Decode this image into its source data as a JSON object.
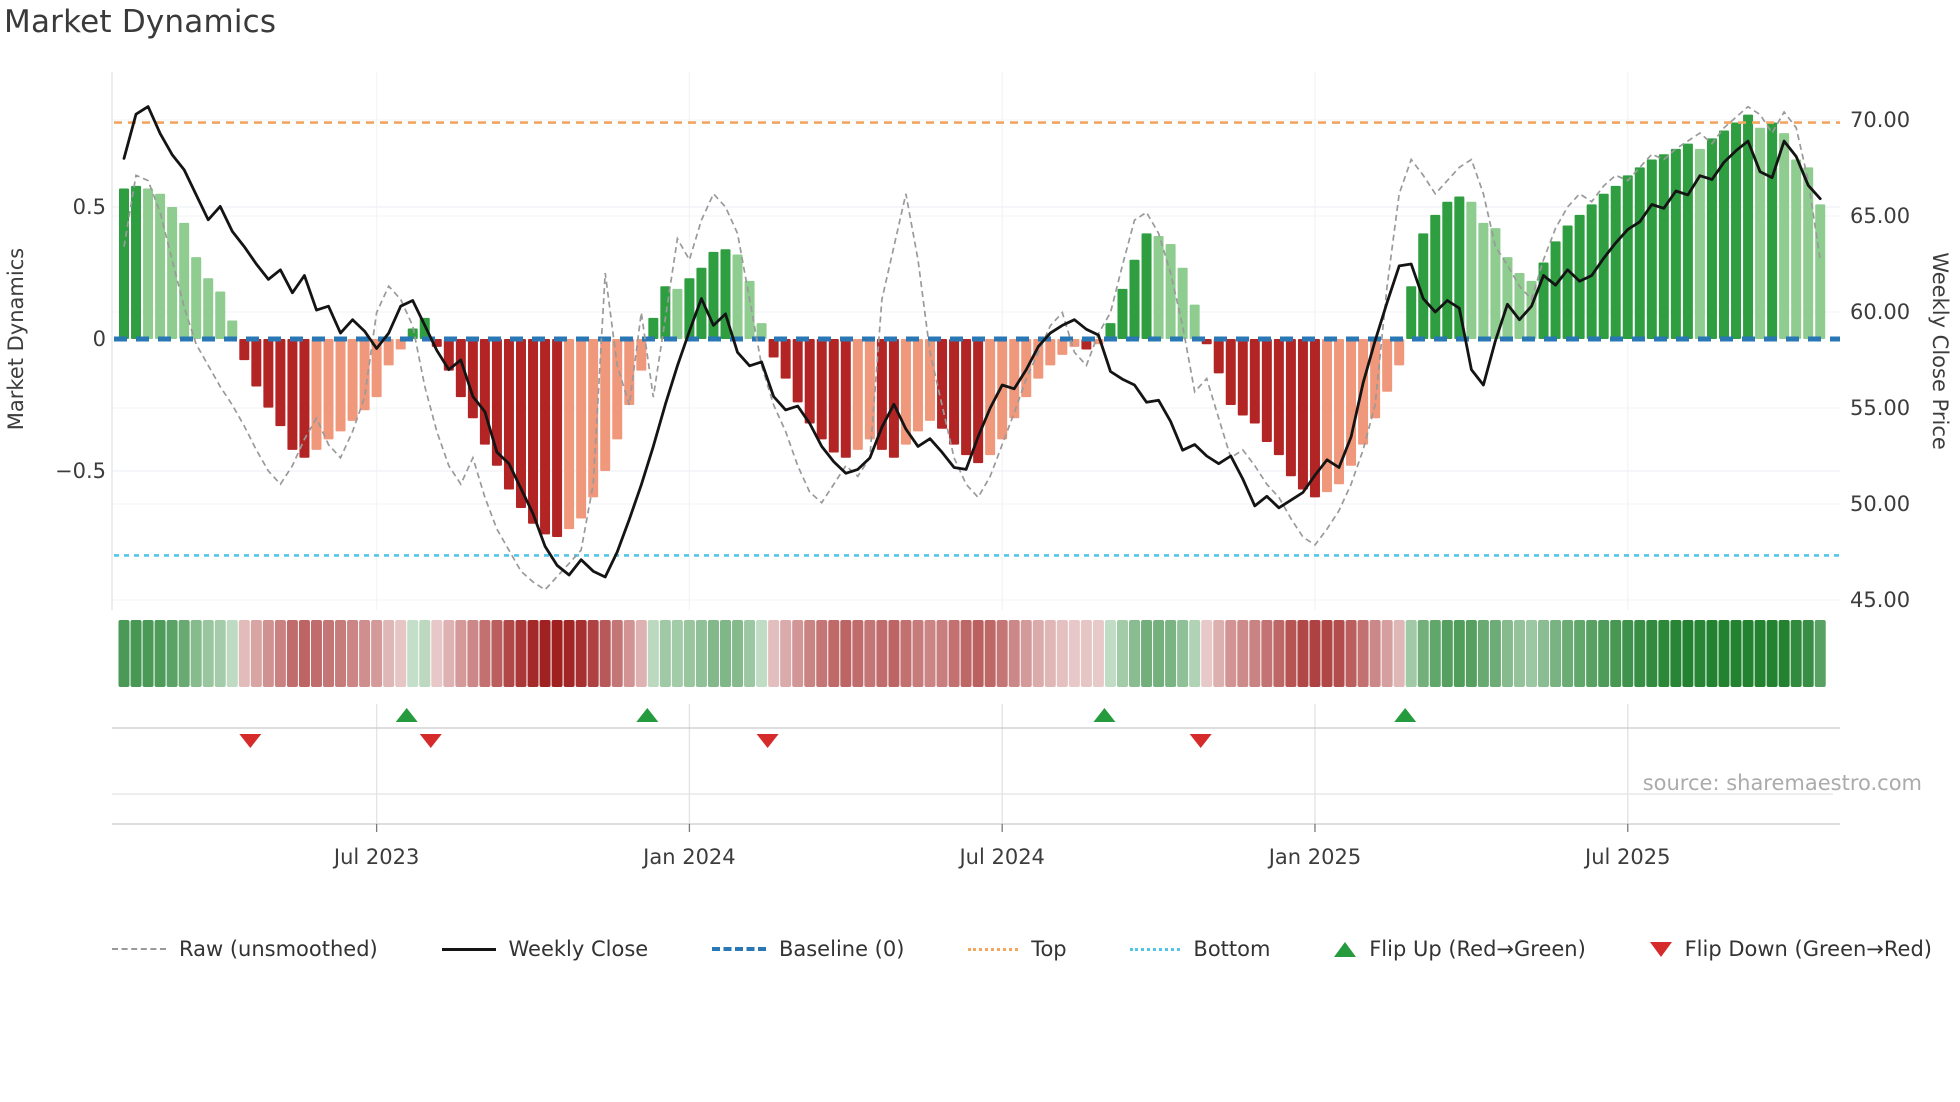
{
  "title": "Market Dynamics",
  "source": "source: sharemaestro.com",
  "axes": {
    "left_label": "Market Dynamics",
    "right_label": "Weekly Close Price",
    "left_ticks": [
      {
        "label": "0.5",
        "value": 0.5
      },
      {
        "label": "0",
        "value": 0
      },
      {
        "label": "−0.5",
        "value": -0.5
      }
    ],
    "right_ticks": [
      {
        "label": "70.00",
        "value": 70
      },
      {
        "label": "65.00",
        "value": 65
      },
      {
        "label": "60.00",
        "value": 60
      },
      {
        "label": "55.00",
        "value": 55
      },
      {
        "label": "50.00",
        "value": 50
      },
      {
        "label": "45.00",
        "value": 45
      }
    ],
    "x_ticks": [
      {
        "label": "Jul 2023",
        "week": 21
      },
      {
        "label": "Jan 2024",
        "week": 47
      },
      {
        "label": "Jul 2024",
        "week": 73
      },
      {
        "label": "Jan 2025",
        "week": 99
      },
      {
        "label": "Jul 2025",
        "week": 125
      }
    ]
  },
  "legend": {
    "items": [
      {
        "name": "legend-raw",
        "swatch": "dash",
        "color": "#9a9a9a",
        "label": "Raw (unsmoothed)"
      },
      {
        "name": "legend-weekly-close",
        "swatch": "line",
        "color": "#141414",
        "label": "Weekly Close"
      },
      {
        "name": "legend-baseline",
        "swatch": "dashbold",
        "color": "#2977b5",
        "label": "Baseline (0)"
      },
      {
        "name": "legend-top",
        "swatch": "dots",
        "color": "#f2a661",
        "label": "Top"
      },
      {
        "name": "legend-bottom",
        "swatch": "dots",
        "color": "#52c5e8",
        "label": "Bottom"
      },
      {
        "name": "legend-flip-up",
        "swatch": "triup",
        "color": "#259b3e",
        "label": "Flip Up (Red→Green)"
      },
      {
        "name": "legend-flip-down",
        "swatch": "tridown",
        "color": "#d62b2b",
        "label": "Flip Down (Green→Red)"
      }
    ]
  },
  "colors": {
    "bar_up_strong": "#2f9e41",
    "bar_up_soft": "#8fcc8f",
    "bar_down_strong": "#b32525",
    "bar_down_soft": "#f0987c",
    "price_line": "#141414",
    "raw_line": "#9a9a9a",
    "baseline": "#2977b5",
    "top_line": "#f2a661",
    "bottom_line": "#52c5e8",
    "flip_up": "#259b3e",
    "flip_down": "#d62b2b",
    "heat_up_base": "#228230",
    "heat_down_base": "#a02020",
    "grid": "#eef1f5",
    "grid_faint": "#f3f5f8",
    "axis_line": "#c9c9c9",
    "tick_text": "#3c3c3c"
  },
  "chart_data": {
    "type": "bar+line combo with heatmap strip and flip markers",
    "x_unit": "week",
    "n_points": 142,
    "osc_axis": {
      "label": "Market Dynamics",
      "range": [
        -1.0,
        1.0
      ],
      "ticks": [
        0.5,
        0,
        -0.5
      ]
    },
    "price_axis": {
      "label": "Weekly Close Price",
      "range": [
        44.8,
        72.0
      ],
      "ticks": [
        70,
        65,
        60,
        55,
        50,
        45
      ]
    },
    "baseline": 0,
    "top_threshold": 0.82,
    "bottom_threshold": -0.82,
    "flip_up_weeks": [
      23.5,
      43.5,
      81.5,
      106.5
    ],
    "flip_down_weeks": [
      10.5,
      25.5,
      53.5,
      89.5
    ],
    "series": [
      {
        "name": "Market Dynamics (smoothed bars)",
        "key": "osc"
      },
      {
        "name": "Raw (unsmoothed)",
        "key": "raw"
      },
      {
        "name": "Weekly Close",
        "key": "price"
      }
    ],
    "osc": [
      0.57,
      0.58,
      0.57,
      0.55,
      0.5,
      0.44,
      0.31,
      0.23,
      0.18,
      0.07,
      -0.08,
      -0.18,
      -0.26,
      -0.33,
      -0.42,
      -0.45,
      -0.42,
      -0.38,
      -0.35,
      -0.31,
      -0.27,
      -0.22,
      -0.1,
      -0.04,
      0.04,
      0.08,
      -0.03,
      -0.12,
      -0.22,
      -0.3,
      -0.4,
      -0.48,
      -0.57,
      -0.64,
      -0.7,
      -0.74,
      -0.75,
      -0.72,
      -0.68,
      -0.6,
      -0.5,
      -0.38,
      -0.25,
      -0.12,
      0.08,
      0.2,
      0.19,
      0.23,
      0.27,
      0.33,
      0.34,
      0.32,
      0.22,
      0.06,
      -0.07,
      -0.15,
      -0.24,
      -0.32,
      -0.38,
      -0.43,
      -0.45,
      -0.42,
      -0.38,
      -0.42,
      -0.45,
      -0.4,
      -0.35,
      -0.31,
      -0.34,
      -0.4,
      -0.44,
      -0.47,
      -0.44,
      -0.38,
      -0.3,
      -0.22,
      -0.15,
      -0.1,
      -0.06,
      -0.03,
      -0.04,
      -0.02,
      0.06,
      0.19,
      0.3,
      0.4,
      0.39,
      0.36,
      0.27,
      0.13,
      -0.02,
      -0.13,
      -0.25,
      -0.29,
      -0.32,
      -0.39,
      -0.44,
      -0.52,
      -0.57,
      -0.6,
      -0.58,
      -0.55,
      -0.48,
      -0.4,
      -0.3,
      -0.2,
      -0.1,
      0.2,
      0.4,
      0.47,
      0.52,
      0.54,
      0.52,
      0.44,
      0.42,
      0.31,
      0.25,
      0.22,
      0.29,
      0.37,
      0.43,
      0.47,
      0.51,
      0.55,
      0.58,
      0.62,
      0.65,
      0.68,
      0.7,
      0.72,
      0.74,
      0.72,
      0.76,
      0.79,
      0.82,
      0.85,
      0.8,
      0.82,
      0.78,
      0.68,
      0.65,
      0.51
    ],
    "raw": [
      0.35,
      0.62,
      0.6,
      0.48,
      0.3,
      0.12,
      -0.02,
      -0.1,
      -0.18,
      -0.25,
      -0.33,
      -0.42,
      -0.5,
      -0.55,
      -0.48,
      -0.38,
      -0.3,
      -0.4,
      -0.45,
      -0.35,
      -0.22,
      0.1,
      0.2,
      0.15,
      0.05,
      -0.18,
      -0.35,
      -0.48,
      -0.55,
      -0.45,
      -0.6,
      -0.72,
      -0.8,
      -0.88,
      -0.92,
      -0.95,
      -0.9,
      -0.85,
      -0.8,
      -0.55,
      0.25,
      -0.1,
      -0.25,
      0.1,
      -0.22,
      0.08,
      0.38,
      0.3,
      0.45,
      0.55,
      0.5,
      0.4,
      0.15,
      -0.1,
      -0.25,
      -0.35,
      -0.48,
      -0.58,
      -0.62,
      -0.55,
      -0.48,
      -0.52,
      -0.45,
      0.15,
      0.35,
      0.55,
      0.3,
      -0.05,
      -0.25,
      -0.45,
      -0.55,
      -0.6,
      -0.52,
      -0.4,
      -0.28,
      -0.15,
      -0.05,
      0.05,
      0.1,
      -0.05,
      -0.1,
      0.02,
      0.1,
      0.28,
      0.45,
      0.48,
      0.4,
      0.25,
      0.05,
      -0.2,
      -0.15,
      -0.3,
      -0.45,
      -0.42,
      -0.48,
      -0.55,
      -0.6,
      -0.68,
      -0.75,
      -0.78,
      -0.72,
      -0.65,
      -0.55,
      -0.42,
      -0.25,
      0.2,
      0.55,
      0.68,
      0.62,
      0.55,
      0.6,
      0.65,
      0.68,
      0.55,
      0.35,
      0.28,
      0.2,
      0.15,
      0.3,
      0.42,
      0.5,
      0.55,
      0.52,
      0.58,
      0.62,
      0.6,
      0.65,
      0.7,
      0.68,
      0.72,
      0.75,
      0.78,
      0.74,
      0.8,
      0.84,
      0.88,
      0.85,
      0.78,
      0.86,
      0.8,
      0.6,
      0.3
    ],
    "price": [
      68.0,
      70.3,
      70.7,
      69.3,
      68.2,
      67.4,
      66.1,
      64.8,
      65.5,
      64.2,
      63.4,
      62.5,
      61.7,
      62.2,
      61.0,
      61.9,
      60.1,
      60.3,
      58.9,
      59.6,
      59.0,
      58.1,
      58.9,
      60.3,
      60.6,
      59.3,
      58.0,
      57.0,
      57.5,
      55.6,
      54.8,
      52.7,
      52.1,
      50.8,
      49.5,
      47.8,
      46.8,
      46.3,
      47.1,
      46.5,
      46.2,
      47.5,
      49.2,
      51.0,
      53.0,
      55.2,
      57.2,
      59.0,
      60.7,
      59.3,
      59.9,
      57.9,
      57.2,
      57.4,
      55.6,
      54.9,
      55.1,
      54.2,
      53.0,
      52.2,
      51.6,
      51.8,
      52.4,
      54.0,
      55.2,
      53.9,
      53.0,
      53.4,
      52.7,
      51.9,
      51.8,
      53.5,
      55.0,
      56.2,
      56.0,
      57.0,
      58.2,
      58.9,
      59.3,
      59.6,
      59.1,
      58.8,
      56.9,
      56.5,
      56.2,
      55.3,
      55.4,
      54.3,
      52.8,
      53.1,
      52.5,
      52.1,
      52.5,
      51.3,
      49.9,
      50.4,
      49.8,
      50.2,
      50.6,
      51.5,
      52.3,
      51.9,
      53.5,
      56.3,
      58.5,
      60.5,
      62.4,
      62.5,
      60.7,
      60.0,
      60.6,
      60.2,
      57.0,
      56.2,
      58.5,
      60.4,
      59.6,
      60.3,
      61.9,
      61.4,
      62.2,
      61.6,
      61.9,
      62.8,
      63.6,
      64.3,
      64.7,
      65.6,
      65.4,
      66.3,
      66.1,
      67.1,
      66.9,
      67.8,
      68.4,
      68.9,
      67.3,
      67.0,
      68.9,
      68.1,
      66.6,
      65.9
    ]
  }
}
